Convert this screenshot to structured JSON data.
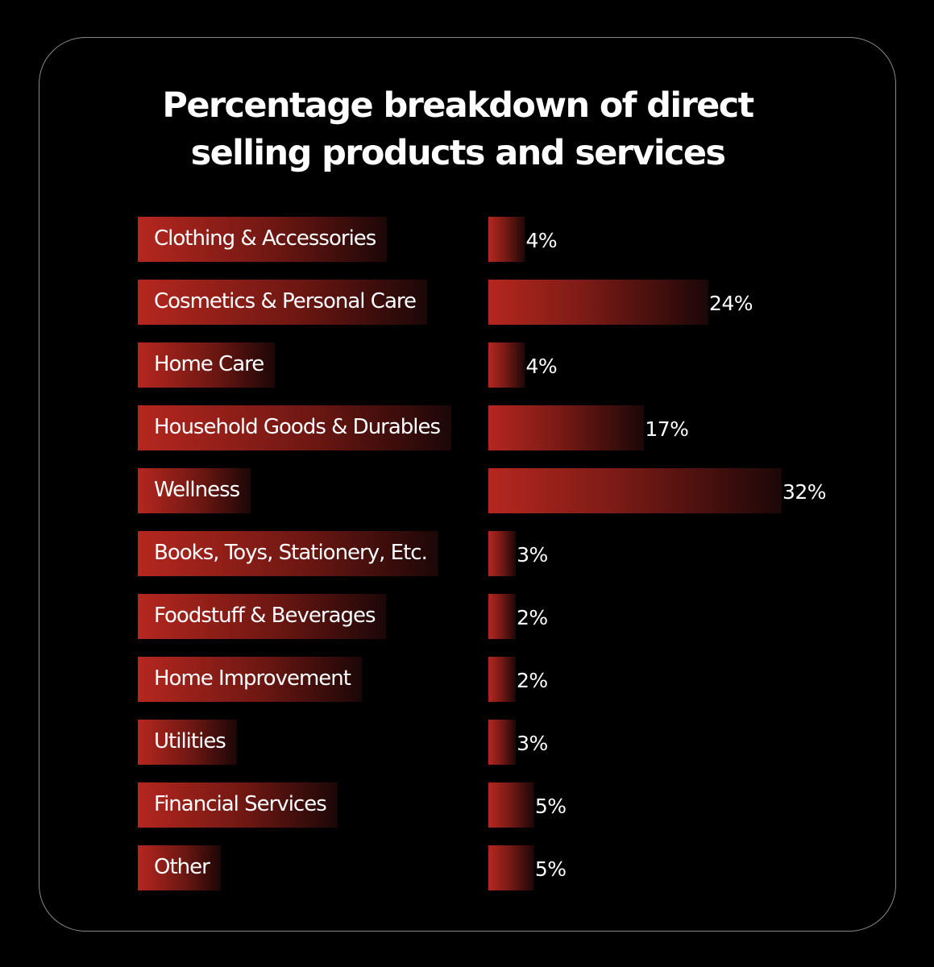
{
  "chart_data": {
    "type": "bar",
    "title": "Percentage breakdown of direct selling products and services",
    "title_lines": [
      "Percentage breakdown of direct",
      "selling products and services"
    ],
    "categories": [
      "Clothing & Accessories",
      "Cosmetics & Personal Care",
      "Home Care",
      "Household Goods & Durables",
      "Wellness",
      "Books, Toys, Stationery, Etc.",
      "Foodstuff & Beverages",
      "Home Improvement",
      "Utilities",
      "Financial Services",
      "Other"
    ],
    "values": [
      4,
      24,
      4,
      17,
      32,
      3,
      2,
      2,
      3,
      5,
      5
    ],
    "value_labels": [
      "4%",
      "24%",
      "4%",
      "17%",
      "32%",
      "3%",
      "2%",
      "2%",
      "3%",
      "5%",
      "5%"
    ],
    "unit": "%",
    "xlim": [
      0,
      32
    ],
    "orientation": "horizontal",
    "grid": false,
    "legend": "none"
  },
  "colors": {
    "background": "#000000",
    "card_border": "#8a8a8a",
    "bar_start": "#b5271f",
    "bar_end": "#1c0707",
    "text": "#ffffff"
  }
}
